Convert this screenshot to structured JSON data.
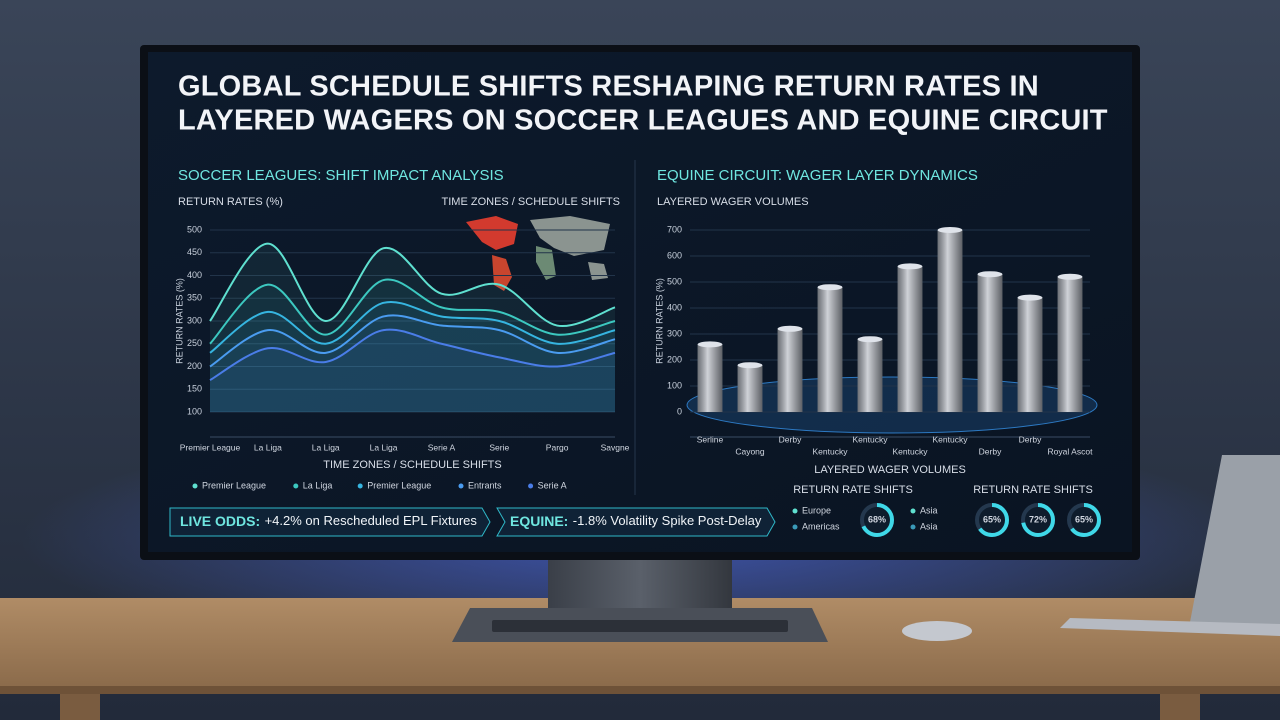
{
  "header": {
    "title_lines": [
      "GLOBAL SCHEDULE SHIFTS RESHAPING RETURN RATES IN",
      "LAYERED WAGERS ON SOCCER LEAGUES AND EQUINE CIRCUIT"
    ]
  },
  "chart_data": [
    {
      "type": "line",
      "title": "SOCCER LEAGUES: SHIFT IMPACT ANALYSIS",
      "subtitle": "RETURN RATES (%)",
      "annotation": "TIME ZONES / SCHEDULE SHIFTS",
      "ylabel": "RETURN RATES (%)",
      "xlabel": "TIME ZONES / SCHEDULE SHIFTS",
      "categories": [
        "Premier League",
        "La Liga",
        "La Liga",
        "La Liga",
        "Serie A",
        "Serie",
        "Pargo",
        "Savgne"
      ],
      "series": [
        {
          "name": "Premier League",
          "color": "#5fe0d0",
          "values": [
            300,
            470,
            300,
            460,
            360,
            380,
            290,
            330
          ]
        },
        {
          "name": "La Liga",
          "color": "#3cc8c0",
          "values": [
            250,
            380,
            270,
            390,
            330,
            320,
            270,
            300
          ]
        },
        {
          "name": "Premier League",
          "color": "#36b5e0",
          "values": [
            230,
            320,
            250,
            340,
            310,
            300,
            250,
            280
          ]
        },
        {
          "name": "Entrants",
          "color": "#4a9cf0",
          "values": [
            200,
            280,
            230,
            310,
            290,
            280,
            230,
            260
          ]
        },
        {
          "name": "Serie A",
          "color": "#4a7de8",
          "values": [
            170,
            240,
            210,
            280,
            250,
            220,
            200,
            230
          ]
        }
      ],
      "ylim": [
        100,
        500
      ],
      "yticks": [
        100,
        150,
        200,
        250,
        300,
        350,
        400,
        450,
        500
      ],
      "grid": true
    },
    {
      "type": "bar",
      "title": "EQUINE CIRCUIT: WAGER LAYER DYNAMICS",
      "subtitle": "LAYERED WAGER VOLUMES",
      "ylabel": "RETURN RATES (%)",
      "xlabel": "LAYERED WAGER VOLUMES",
      "categories": [
        "Serline",
        "Cayong",
        "Derby",
        "Kentucky",
        "Kentucky",
        "Kentucky",
        "Kentucky",
        "Derby",
        "Derby",
        "Royal Ascot"
      ],
      "values": [
        260,
        180,
        320,
        480,
        280,
        560,
        700,
        530,
        440,
        520
      ],
      "color": "#a9aeb8",
      "ylim": [
        0,
        700
      ],
      "yticks": [
        0,
        100,
        200,
        300,
        400,
        500,
        600,
        700
      ],
      "grid": true
    }
  ],
  "regions": {
    "title": "RETURN RATE SHIFTS",
    "names": [
      "Europe",
      "Americas",
      "Asia",
      "Asia"
    ]
  },
  "gauges_title": "RETURN RATE SHIFTS",
  "gauges": [
    {
      "value": 68,
      "label": "68%"
    },
    {
      "value": 65,
      "label": "65%"
    },
    {
      "value": 72,
      "label": "72%"
    },
    {
      "value": 65,
      "label": "65%"
    }
  ],
  "tickers": [
    {
      "label": "LIVE ODDS:",
      "text": "+4.2% on Rescheduled EPL Fixtures"
    },
    {
      "label": "EQUINE:",
      "text": "-1.8% Volatility Spike Post-Delay"
    }
  ]
}
